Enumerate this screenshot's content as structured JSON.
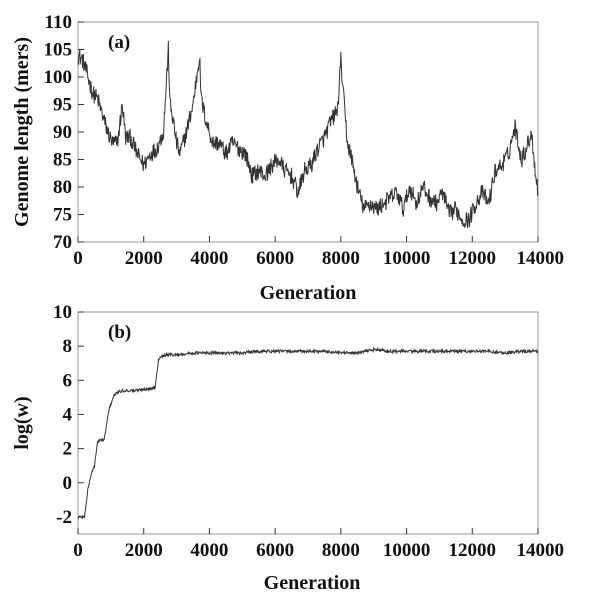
{
  "chart_data": [
    {
      "type": "line",
      "panel_label": "(a)",
      "xlabel": "Generation",
      "ylabel": "Genome length (mers)",
      "xlim": [
        0,
        14000
      ],
      "ylim": [
        70,
        110
      ],
      "xticks": [
        0,
        2000,
        4000,
        6000,
        8000,
        10000,
        12000,
        14000
      ],
      "xtick_labels": [
        "0",
        "2000",
        "4000",
        "6000",
        "8000",
        "10000",
        "12000",
        "14000"
      ],
      "yticks": [
        70,
        75,
        80,
        85,
        90,
        95,
        100,
        105,
        110
      ],
      "ytick_labels": [
        "70",
        "75",
        "80",
        "85",
        "90",
        "95",
        "100",
        "105",
        "110"
      ],
      "grid": false,
      "legend": "none",
      "line_color": "#333333",
      "series": [
        {
          "x": [
            0,
            150,
            300,
            450,
            600,
            750,
            900,
            1050,
            1200,
            1350,
            1450,
            1600,
            1800,
            2000,
            2200,
            2400,
            2600,
            2750,
            2800,
            2900,
            3000,
            3100,
            3300,
            3500,
            3700,
            3750,
            3900,
            4100,
            4300,
            4500,
            4700,
            4900,
            5100,
            5300,
            5500,
            5700,
            5900,
            6100,
            6300,
            6500,
            6700,
            6900,
            7100,
            7300,
            7500,
            7700,
            7900,
            8000,
            8100,
            8200,
            8300,
            8500,
            8700,
            8900,
            9100,
            9300,
            9500,
            9700,
            9900,
            10100,
            10300,
            10500,
            10700,
            10900,
            11100,
            11300,
            11500,
            11700,
            11900,
            12100,
            12300,
            12500,
            12700,
            12900,
            13100,
            13300,
            13400,
            13500,
            13700,
            13800,
            13900,
            14000
          ],
          "values": [
            104,
            103,
            100,
            97,
            96,
            93,
            90,
            88,
            88,
            95,
            89,
            89,
            86,
            84,
            86,
            87,
            90,
            105,
            95,
            92,
            88,
            86,
            90,
            95,
            104,
            96,
            92,
            88,
            88,
            86,
            88,
            87,
            86,
            82,
            83,
            82,
            84,
            85,
            83,
            82,
            79,
            83,
            84,
            87,
            89,
            92,
            94,
            103,
            95,
            88,
            86,
            80,
            76,
            77,
            76,
            77,
            78,
            79,
            76,
            80,
            77,
            80,
            78,
            77,
            79,
            75,
            76,
            74,
            74,
            77,
            79,
            77,
            83,
            84,
            86,
            91,
            88,
            85,
            88,
            90,
            84,
            79
          ]
        }
      ]
    },
    {
      "type": "line",
      "panel_label": "(b)",
      "xlabel": "Generation",
      "ylabel": "log(w)",
      "xlim": [
        0,
        14000
      ],
      "ylim": [
        -3,
        10
      ],
      "xticks": [
        0,
        2000,
        4000,
        6000,
        8000,
        10000,
        12000,
        14000
      ],
      "xtick_labels": [
        "0",
        "2000",
        "4000",
        "6000",
        "8000",
        "10000",
        "12000",
        "14000"
      ],
      "yticks": [
        -2,
        0,
        2,
        4,
        6,
        8,
        10
      ],
      "ytick_labels": [
        "-2",
        "0",
        "2",
        "4",
        "6",
        "8",
        "10"
      ],
      "grid": false,
      "legend": "none",
      "line_color": "#333333",
      "series": [
        {
          "x": [
            0,
            100,
            200,
            300,
            400,
            500,
            600,
            650,
            700,
            800,
            900,
            950,
            1000,
            1050,
            1100,
            1200,
            1400,
            1600,
            1800,
            2000,
            2200,
            2350,
            2400,
            2450,
            2500,
            2700,
            3000,
            3500,
            4000,
            4500,
            5000,
            5500,
            6000,
            6500,
            7000,
            7500,
            8000,
            8500,
            9000,
            9500,
            10000,
            10500,
            11000,
            11500,
            12000,
            12500,
            13000,
            13500,
            14000
          ],
          "values": [
            -2.0,
            -2.0,
            -2.0,
            -0.4,
            0.5,
            1.0,
            2.4,
            2.5,
            2.5,
            2.5,
            3.8,
            4.3,
            4.6,
            4.9,
            5.1,
            5.3,
            5.4,
            5.4,
            5.4,
            5.5,
            5.5,
            5.6,
            6.5,
            7.2,
            7.4,
            7.5,
            7.5,
            7.6,
            7.6,
            7.6,
            7.6,
            7.7,
            7.7,
            7.7,
            7.7,
            7.7,
            7.6,
            7.6,
            7.8,
            7.7,
            7.7,
            7.7,
            7.7,
            7.7,
            7.7,
            7.7,
            7.6,
            7.7,
            7.7
          ]
        }
      ]
    }
  ]
}
